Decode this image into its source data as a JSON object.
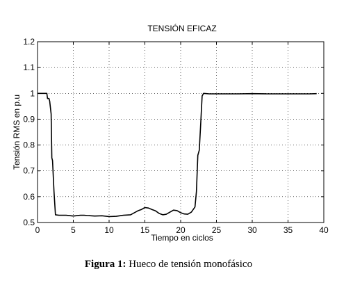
{
  "caption": {
    "label": "Figura 1:",
    "text": " Hueco de tensión monofásico"
  },
  "chart_data": {
    "type": "line",
    "title": "TENSIÓN EFICAZ",
    "xlabel": "Tiempo en ciclos",
    "ylabel": "Tensión RMS en p.u",
    "xlim": [
      0,
      40
    ],
    "ylim": [
      0.5,
      1.2
    ],
    "xticks": [
      0,
      5,
      10,
      15,
      20,
      25,
      30,
      35,
      40
    ],
    "yticks": [
      0.5,
      0.6,
      0.7,
      0.8,
      0.9,
      1,
      1.1,
      1.2
    ],
    "ytick_labels": [
      "0.5",
      "0.6",
      "0.7",
      "0.8",
      "0.9",
      "1",
      "1.1",
      "1.2"
    ],
    "grid": true,
    "series": [
      {
        "color": "#000000",
        "x": [
          0,
          1.3,
          1.4,
          1.6,
          1.7,
          1.9,
          2.0,
          2.1,
          2.3,
          2.5,
          3,
          4,
          5,
          6,
          6.5,
          7,
          8,
          9,
          10,
          11,
          12,
          13,
          14,
          14.5,
          15,
          15.5,
          16,
          16.5,
          17,
          17.5,
          18,
          18.5,
          19,
          19.5,
          20,
          20.5,
          21,
          21.5,
          22,
          22.2,
          22.4,
          22.6,
          22.8,
          23.0,
          23.2,
          24,
          26,
          28,
          30,
          32,
          34,
          36,
          38,
          39
        ],
        "y": [
          1.0,
          1.0,
          0.98,
          0.98,
          0.97,
          0.92,
          0.75,
          0.74,
          0.62,
          0.53,
          0.528,
          0.528,
          0.525,
          0.528,
          0.528,
          0.527,
          0.525,
          0.526,
          0.523,
          0.524,
          0.528,
          0.53,
          0.545,
          0.55,
          0.558,
          0.556,
          0.55,
          0.545,
          0.535,
          0.53,
          0.532,
          0.54,
          0.548,
          0.546,
          0.538,
          0.533,
          0.532,
          0.54,
          0.56,
          0.62,
          0.76,
          0.78,
          0.88,
          0.99,
          1.0,
          0.998,
          0.998,
          0.998,
          0.999,
          0.998,
          0.998,
          0.998,
          0.998,
          0.999
        ]
      }
    ]
  }
}
